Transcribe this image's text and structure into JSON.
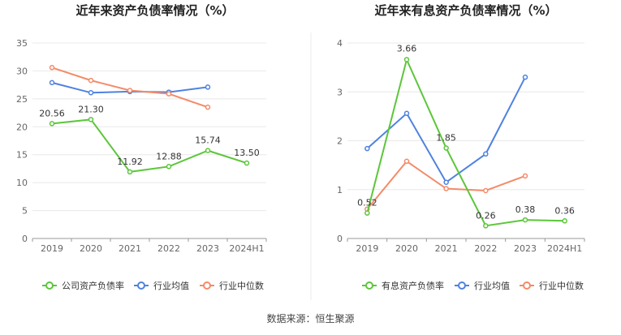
{
  "charts": {
    "left_title": "近年来资产负债率情况（%）",
    "right_title": "近年来有息资产负债率情况（%）"
  },
  "source": "数据来源：恒生聚源",
  "colors": {
    "company": "#5cc63a",
    "avg": "#4f82e0",
    "median": "#f48b68",
    "grid": "#e8e8e8",
    "axis": "#999999"
  },
  "chart_data": [
    {
      "type": "line",
      "title": "近年来资产负债率情况（%）",
      "categories": [
        "2019",
        "2020",
        "2021",
        "2022",
        "2023",
        "2024H1"
      ],
      "ylim": [
        0,
        35
      ],
      "yticks": [
        0,
        5,
        10,
        15,
        20,
        25,
        30,
        35
      ],
      "legend_position": "bottom",
      "series": [
        {
          "name": "公司资产负债率",
          "values": [
            20.56,
            21.3,
            11.92,
            12.88,
            15.74,
            13.5
          ],
          "labels": [
            "20.56",
            "21.30",
            "11.92",
            "12.88",
            "15.74",
            "13.50"
          ]
        },
        {
          "name": "行业均值",
          "values": [
            27.9,
            26.1,
            26.3,
            26.2,
            27.1,
            null
          ]
        },
        {
          "name": "行业中位数",
          "values": [
            30.6,
            28.3,
            26.5,
            25.9,
            23.5,
            null
          ]
        }
      ]
    },
    {
      "type": "line",
      "title": "近年来有息资产负债率情况（%）",
      "categories": [
        "2019",
        "2020",
        "2021",
        "2022",
        "2023",
        "2024H1"
      ],
      "ylim": [
        0,
        4
      ],
      "yticks": [
        0,
        1,
        2,
        3,
        4
      ],
      "legend_position": "bottom",
      "series": [
        {
          "name": "有息资产负债率",
          "values": [
            0.52,
            3.66,
            1.85,
            0.26,
            0.38,
            0.36
          ],
          "labels": [
            "0.52",
            "3.66",
            "1.85",
            "0.26",
            "0.38",
            "0.36"
          ]
        },
        {
          "name": "行业均值",
          "values": [
            1.84,
            2.56,
            1.15,
            1.73,
            3.3,
            null
          ]
        },
        {
          "name": "行业中位数",
          "values": [
            0.6,
            1.58,
            1.02,
            0.98,
            1.28,
            null
          ]
        }
      ]
    }
  ]
}
